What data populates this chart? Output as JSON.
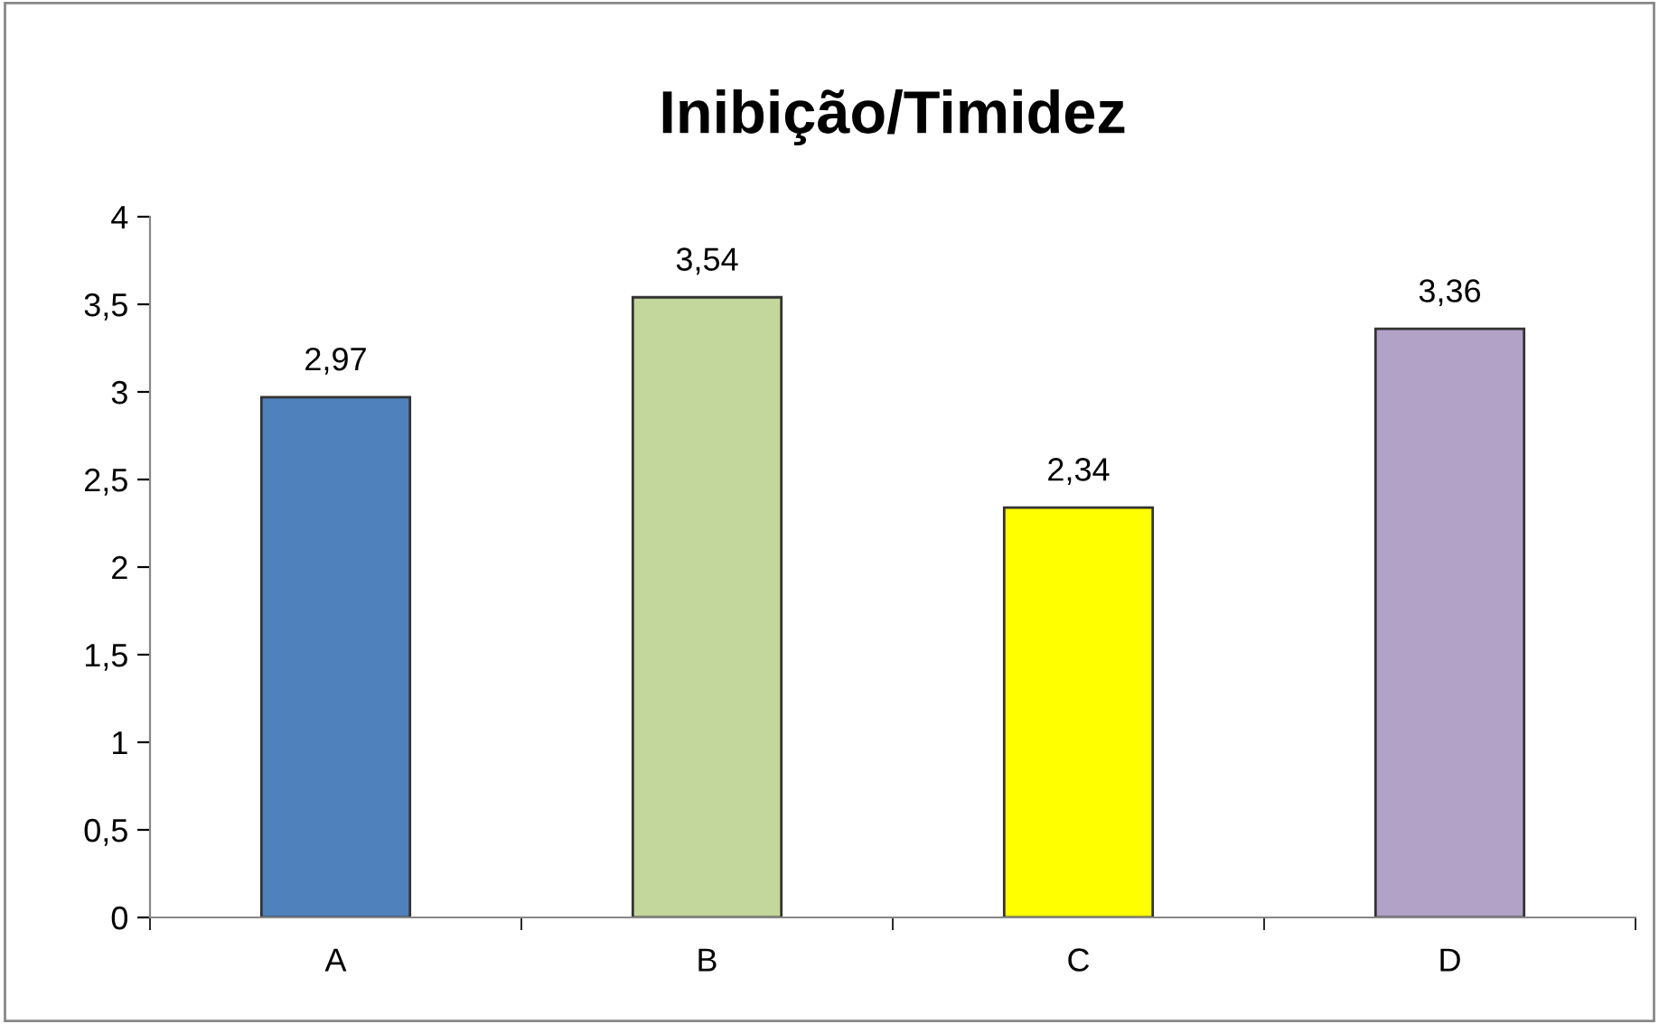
{
  "chart_data": {
    "type": "bar",
    "title": "Inibição/Timidez",
    "categories": [
      "A",
      "B",
      "C",
      "D"
    ],
    "values": [
      2.97,
      3.54,
      2.34,
      3.36
    ],
    "colors": [
      "#4f81bd",
      "#c3d69b",
      "#ffff00",
      "#b2a2c7"
    ],
    "value_labels": [
      "2,97",
      "3,54",
      "2,34",
      "3,36"
    ],
    "ylim": [
      0,
      4
    ],
    "yticks": [
      0,
      {
        "value": 0.5,
        "label": "0,5"
      },
      1,
      {
        "value": 1.5,
        "label": "1,5"
      },
      2,
      {
        "value": 2.5,
        "label": "2,5"
      },
      3,
      {
        "value": 3.5,
        "label": "3,5"
      },
      4
    ],
    "grid": false,
    "legend": false
  }
}
